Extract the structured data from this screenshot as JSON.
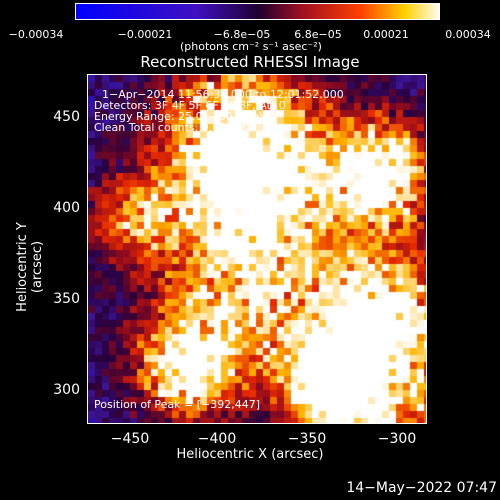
{
  "colorbar": {
    "ticks": [
      "−0.00034",
      "−0.00021",
      "−6.8e−05",
      "6.8e−05",
      "0.00021",
      "0.00034"
    ],
    "units": "(photons cm⁻² s⁻¹ asec⁻²)"
  },
  "title": "Reconstructed RHESSI Image",
  "info": {
    "time": "1−Apr−2014 11:56:32.000 to 12:01:52.000",
    "detectors": "Detectors: 3F 4F 5F 6F 7F 8F, Att 0",
    "energy": "Energy Range: 25.0 − 50.0 keV",
    "method": "Clean    Total counts: 9.03E+03",
    "peak": "Position of Peak = [−392,447]"
  },
  "axes": {
    "xlabel": "Heliocentric X (arcsec)",
    "ylabel": "Heliocentric Y (arcsec)",
    "xticks": [
      "−450",
      "−400",
      "−350",
      "−300"
    ],
    "yticks": [
      "450",
      "400",
      "350",
      "300"
    ],
    "xrange": [
      -478,
      -288
    ],
    "yrange": [
      283,
      478
    ]
  },
  "timestamp": "14−May−2022 07:47",
  "colors": {
    "low": "#0000ff",
    "mid": "#5a1a8a",
    "high": "#ff3000",
    "max": "#ffffff"
  }
}
